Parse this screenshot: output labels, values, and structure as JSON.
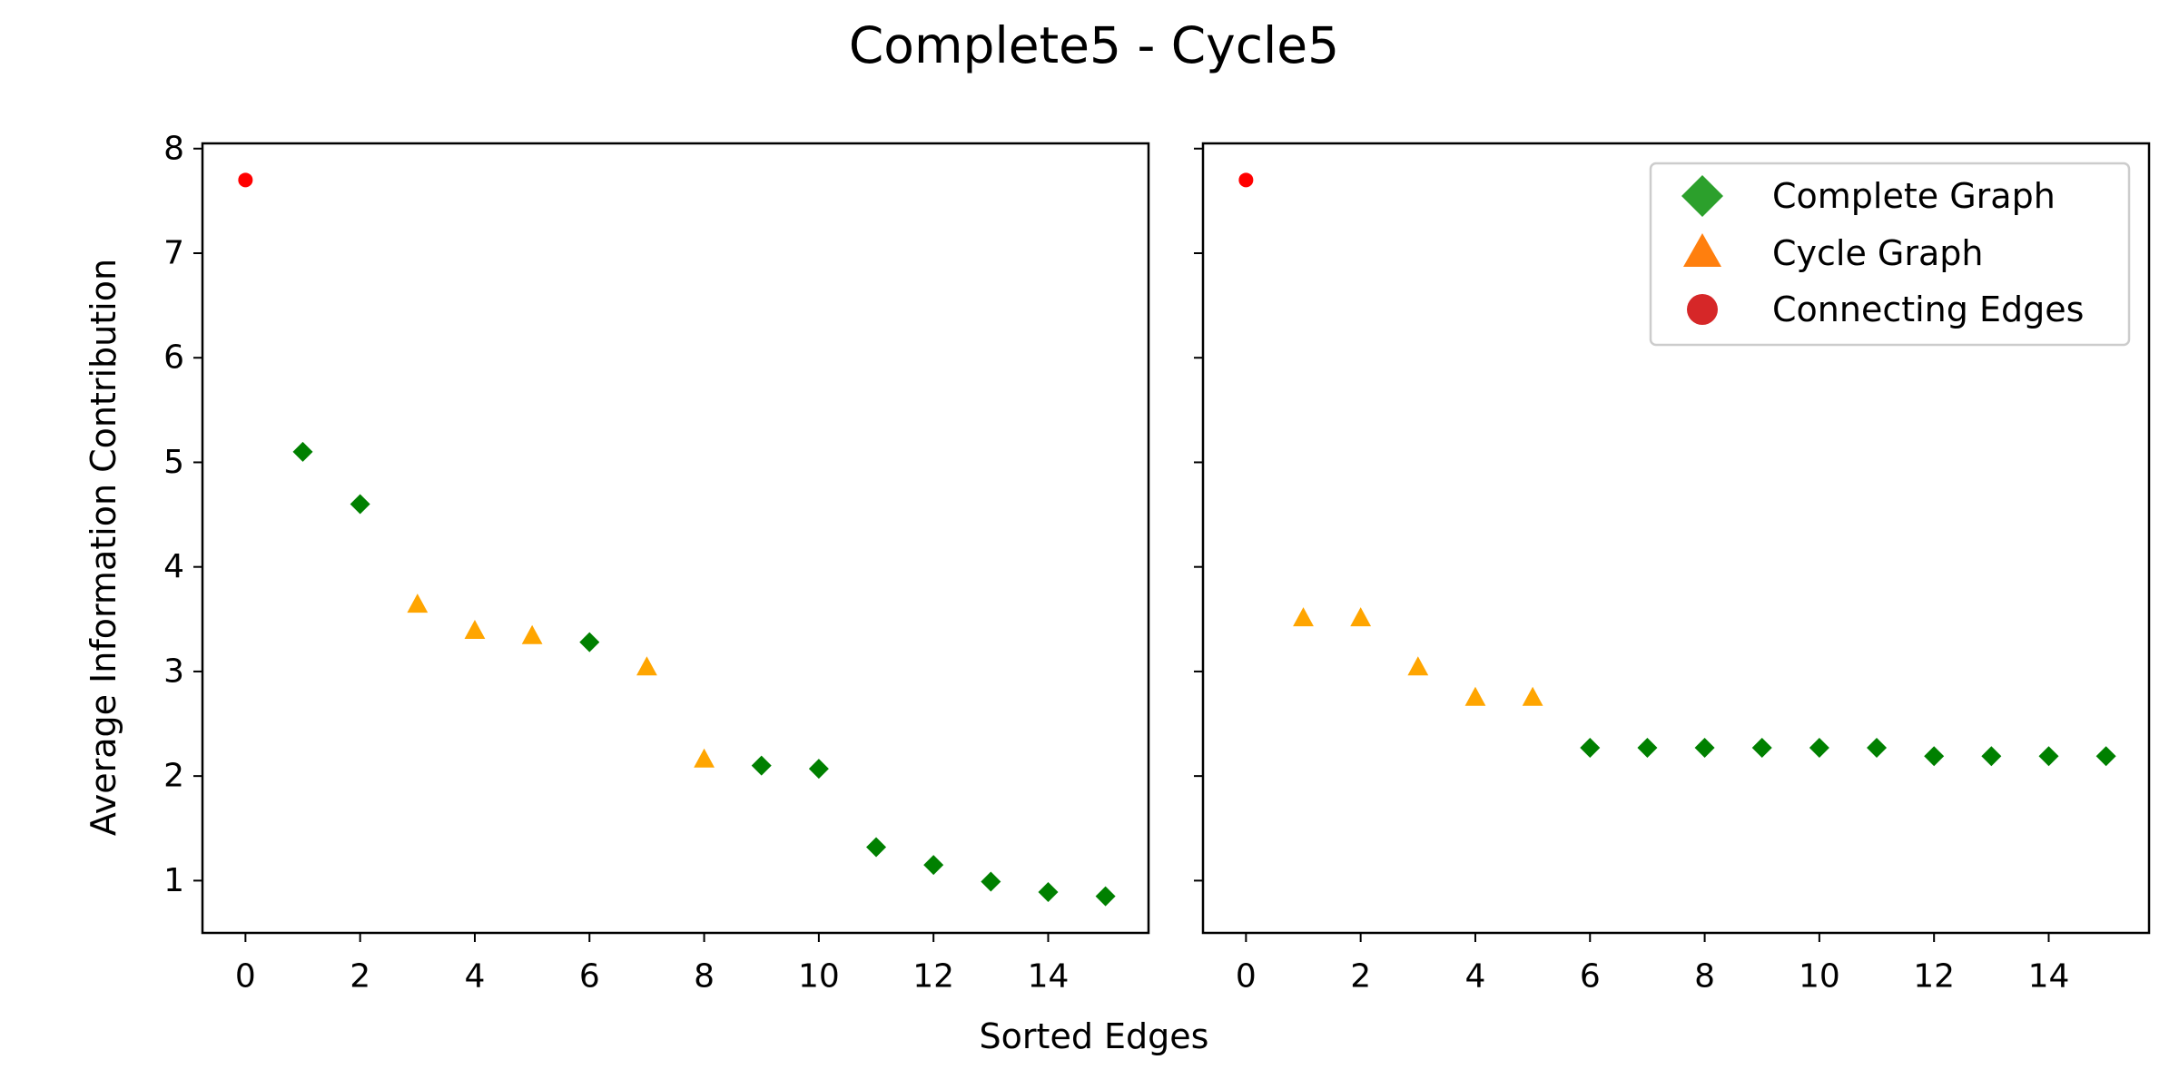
{
  "chart_data": {
    "type": "scatter",
    "title": "Complete5 - Cycle5",
    "xlabel": "Sorted Edges",
    "ylabel": "Average Information Contribution",
    "xlim": [
      -0.75,
      15.75
    ],
    "ylim": [
      0.5,
      8.05
    ],
    "xticks": [
      "0",
      "2",
      "4",
      "6",
      "8",
      "10",
      "12",
      "14"
    ],
    "yticks": [
      "1",
      "2",
      "3",
      "4",
      "5",
      "6",
      "7",
      "8"
    ],
    "colors": {
      "complete": "#008000",
      "cycle": "#ffa500",
      "connecting": "#ff0000",
      "legend_complete": "#2ca02c",
      "legend_cycle": "#ff7f0e",
      "legend_connecting": "#d62728"
    },
    "legend": {
      "placement": "top-right",
      "entries": [
        "Complete Graph",
        "Cycle Graph",
        "Connecting Edges"
      ]
    },
    "panels": [
      {
        "name": "left",
        "points": [
          {
            "x": 0,
            "y": 7.7,
            "type": "connecting"
          },
          {
            "x": 1,
            "y": 5.1,
            "type": "complete"
          },
          {
            "x": 2,
            "y": 4.6,
            "type": "complete"
          },
          {
            "x": 3,
            "y": 3.64,
            "type": "cycle"
          },
          {
            "x": 4,
            "y": 3.39,
            "type": "cycle"
          },
          {
            "x": 5,
            "y": 3.34,
            "type": "cycle"
          },
          {
            "x": 6,
            "y": 3.28,
            "type": "complete"
          },
          {
            "x": 7,
            "y": 3.04,
            "type": "cycle"
          },
          {
            "x": 8,
            "y": 2.16,
            "type": "cycle"
          },
          {
            "x": 9,
            "y": 2.1,
            "type": "complete"
          },
          {
            "x": 10,
            "y": 2.07,
            "type": "complete"
          },
          {
            "x": 11,
            "y": 1.32,
            "type": "complete"
          },
          {
            "x": 12,
            "y": 1.15,
            "type": "complete"
          },
          {
            "x": 13,
            "y": 0.99,
            "type": "complete"
          },
          {
            "x": 14,
            "y": 0.89,
            "type": "complete"
          },
          {
            "x": 15,
            "y": 0.85,
            "type": "complete"
          }
        ]
      },
      {
        "name": "right",
        "points": [
          {
            "x": 0,
            "y": 7.7,
            "type": "connecting"
          },
          {
            "x": 1,
            "y": 3.51,
            "type": "cycle"
          },
          {
            "x": 2,
            "y": 3.51,
            "type": "cycle"
          },
          {
            "x": 3,
            "y": 3.04,
            "type": "cycle"
          },
          {
            "x": 4,
            "y": 2.75,
            "type": "cycle"
          },
          {
            "x": 5,
            "y": 2.75,
            "type": "cycle"
          },
          {
            "x": 6,
            "y": 2.27,
            "type": "complete"
          },
          {
            "x": 7,
            "y": 2.27,
            "type": "complete"
          },
          {
            "x": 8,
            "y": 2.27,
            "type": "complete"
          },
          {
            "x": 9,
            "y": 2.27,
            "type": "complete"
          },
          {
            "x": 10,
            "y": 2.27,
            "type": "complete"
          },
          {
            "x": 11,
            "y": 2.27,
            "type": "complete"
          },
          {
            "x": 12,
            "y": 2.19,
            "type": "complete"
          },
          {
            "x": 13,
            "y": 2.19,
            "type": "complete"
          },
          {
            "x": 14,
            "y": 2.19,
            "type": "complete"
          },
          {
            "x": 15,
            "y": 2.19,
            "type": "complete"
          }
        ]
      }
    ]
  }
}
